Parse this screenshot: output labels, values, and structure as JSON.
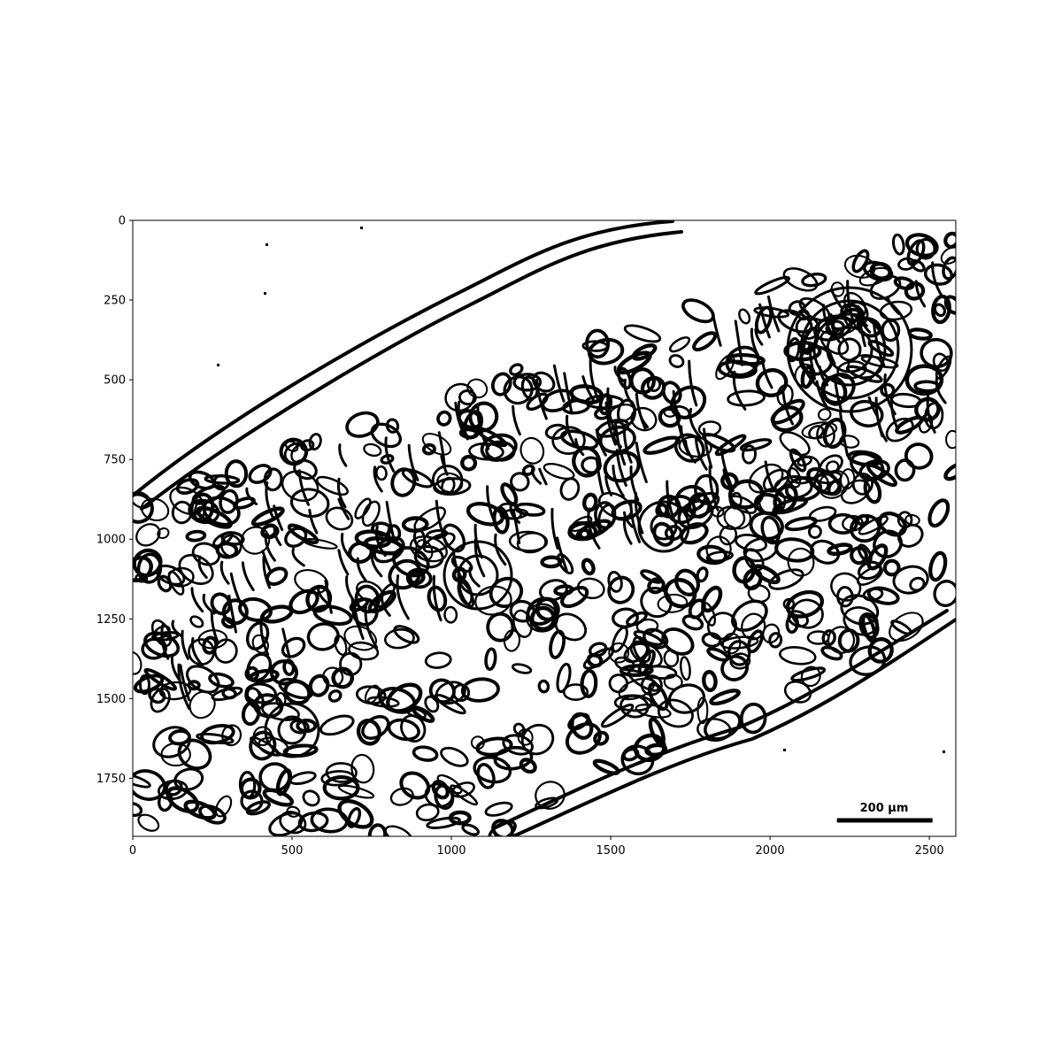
{
  "chart_data": {
    "type": "image",
    "image_width": 2583,
    "image_height": 1932,
    "xlim": [
      0,
      2583
    ],
    "ylim": [
      1932,
      0
    ],
    "x_ticks": [
      0,
      500,
      1000,
      1500,
      2000,
      2500
    ],
    "y_ticks": [
      0,
      250,
      500,
      750,
      1000,
      1250,
      1500,
      1750
    ],
    "scale_bar": {
      "label": "200 μm",
      "x_start": 2210,
      "x_end": 2510,
      "y": 1875
    },
    "colors": {
      "foreground": "#000000",
      "background": "#ffffff"
    }
  }
}
